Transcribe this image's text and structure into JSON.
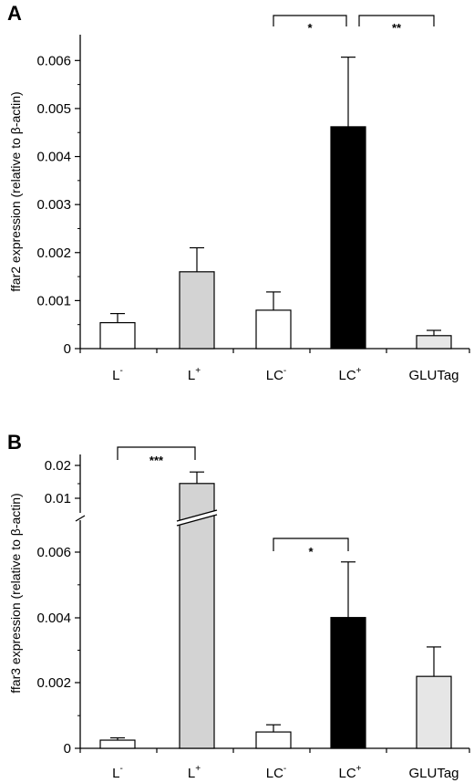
{
  "chart_data": [
    {
      "type": "bar",
      "panel_label": "A",
      "ylabel": "ffar2 expression (relative to β-actin)",
      "categories": [
        {
          "base": "L",
          "sup": "-"
        },
        {
          "base": "L",
          "sup": "+"
        },
        {
          "base": "LC",
          "sup": "-"
        },
        {
          "base": "LC",
          "sup": "+"
        },
        {
          "base": "GLUTag",
          "sup": ""
        }
      ],
      "values": [
        0.00054,
        0.0016,
        0.0008,
        0.00462,
        0.00027
      ],
      "errors": [
        0.00019,
        0.0005,
        0.00038,
        0.00145,
        0.00011
      ],
      "bar_colors": [
        "#ffffff",
        "#d3d3d3",
        "#ffffff",
        "#000000",
        "#e6e6e6"
      ],
      "ylim": [
        0,
        0.0065
      ],
      "yticks": [
        {
          "v": 0,
          "label": "0"
        },
        {
          "v": 0.001,
          "label": "0.001"
        },
        {
          "v": 0.002,
          "label": "0.002"
        },
        {
          "v": 0.003,
          "label": "0.003"
        },
        {
          "v": 0.004,
          "label": "0.004"
        },
        {
          "v": 0.005,
          "label": "0.005"
        },
        {
          "v": 0.006,
          "label": "0.006"
        }
      ],
      "minor_yticks": [
        0.0005,
        0.0015,
        0.0025,
        0.0035,
        0.0045,
        0.0055
      ],
      "significance": [
        {
          "from": 2,
          "to": 3,
          "label": "*"
        },
        {
          "from": 3,
          "to": 4,
          "label": "**"
        }
      ]
    },
    {
      "type": "bar",
      "panel_label": "B",
      "ylabel": "ffar3 expression (relative to β-actin)",
      "categories": [
        {
          "base": "L",
          "sup": "-"
        },
        {
          "base": "L",
          "sup": "+"
        },
        {
          "base": "LC",
          "sup": "-"
        },
        {
          "base": "LC",
          "sup": "+"
        },
        {
          "base": "GLUTag",
          "sup": ""
        }
      ],
      "values": [
        0.00025,
        0.0145,
        0.0005,
        0.004,
        0.0022
      ],
      "errors": [
        7e-05,
        0.0035,
        0.00022,
        0.0017,
        0.0009
      ],
      "bar_colors": [
        "#ffffff",
        "#d3d3d3",
        "#ffffff",
        "#000000",
        "#e6e6e6"
      ],
      "axis_break": {
        "lower_max": 0.007,
        "upper_min": 0.007,
        "upper_max": 0.02
      },
      "yticks": [
        {
          "v": 0,
          "label": "0"
        },
        {
          "v": 0.002,
          "label": "0.002"
        },
        {
          "v": 0.004,
          "label": "0.004"
        },
        {
          "v": 0.006,
          "label": "0.006"
        },
        {
          "v": 0.01,
          "label": "0.01"
        },
        {
          "v": 0.02,
          "label": "0.02"
        }
      ],
      "minor_yticks": [
        0.001,
        0.003,
        0.005
      ],
      "significance": [
        {
          "from": 0,
          "to": 1,
          "label": "***"
        },
        {
          "from": 2,
          "to": 3,
          "label": "*"
        }
      ]
    }
  ]
}
